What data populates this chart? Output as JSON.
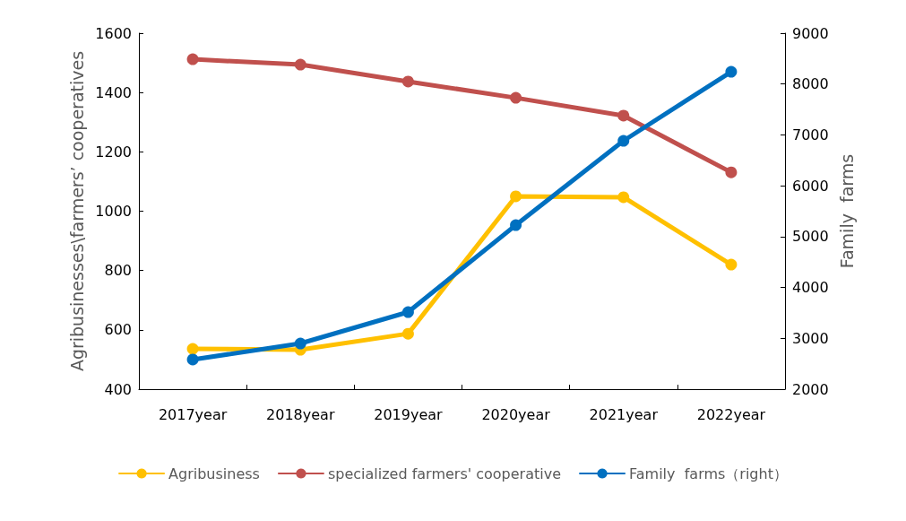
{
  "chart_data": {
    "type": "line",
    "categories": [
      "2017year",
      "2018year",
      "2019year",
      "2020year",
      "2021year",
      "2022year"
    ],
    "series": [
      {
        "name": "Agribusiness",
        "color": "#ffc000",
        "values": [
          536,
          533,
          587,
          1050,
          1047,
          820
        ]
      },
      {
        "name": "specialized farmers' cooperative",
        "color": "#c0504d",
        "values": [
          1512,
          1494,
          1437,
          1382,
          1322,
          1131
        ]
      },
      {
        "name": "Family  farms（right）",
        "color": "#0070c0",
        "axis": "y2",
        "values": [
          2582,
          2899,
          3516,
          5226,
          6884,
          8241
        ]
      }
    ],
    "ylabel": "Agribusinesses\\farmers’ cooperatives",
    "y2label": "Family  farms",
    "ylim": [
      400,
      1600
    ],
    "yticks": [
      400,
      600,
      800,
      1000,
      1200,
      1400,
      1600
    ],
    "y2lim": [
      2000,
      9000
    ],
    "y2ticks": [
      2000,
      3000,
      4000,
      5000,
      6000,
      7000,
      8000,
      9000
    ],
    "grid": false,
    "legend": "bottom",
    "marker": "circle",
    "line_style": "solid"
  }
}
